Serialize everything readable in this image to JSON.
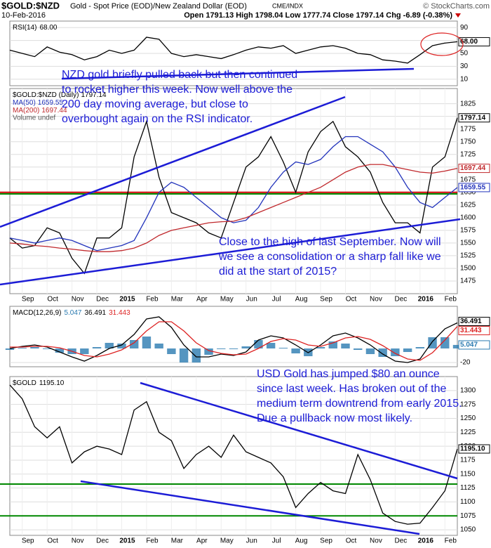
{
  "header": {
    "symbol": "$GOLD:$NZD",
    "description": "Gold - Spot Price (EOD)/New Zealand Dollar (EOD)",
    "exchange": "CME/INDX",
    "copyright": "© StockCharts.com",
    "date": "10-Feb-2016",
    "quote": "Open 1791.13 High 1798.04 Low 1777.74 Close 1797.14 Chg -6.89 (-0.38%)"
  },
  "annotations": [
    "NZD gold briefly pulled back but then continued to rocket higher this week. Now well above the 200 day moving average, but close to overbought again on the RSI indicator.",
    "Close to the high of last September. Now will we see a consolidation or a sharp fall like we did at the start of 2015?",
    "USD Gold has jumped $80 an ounce since last week. Has broken out of the medium term downtrend from early 2015. Due a pullback now most likely."
  ],
  "chart_data": [
    {
      "type": "line",
      "title": "RSI(14)",
      "ylim": [
        0,
        100
      ],
      "yticks": [
        10,
        30,
        50,
        70,
        90
      ],
      "series": [
        {
          "color": "#000000",
          "last_label": "68.00",
          "values": [
            55,
            50,
            45,
            60,
            52,
            48,
            40,
            45,
            55,
            50,
            55,
            75,
            72,
            50,
            45,
            48,
            45,
            42,
            48,
            55,
            60,
            58,
            62,
            50,
            55,
            60,
            62,
            58,
            50,
            48,
            40,
            38,
            35,
            48,
            62,
            66,
            68
          ]
        }
      ]
    },
    {
      "type": "line",
      "legend_extra": "Volume undef",
      "ylim": [
        1450,
        1855
      ],
      "yticks": [
        1475,
        1500,
        1525,
        1550,
        1575,
        1600,
        1625,
        1650,
        1675,
        1700,
        1725,
        1750,
        1775,
        1800,
        1825
      ],
      "categories": [
        null,
        "Sep",
        null,
        "Oct",
        null,
        "Nov",
        null,
        "Dec",
        null,
        "2015",
        null,
        "Feb",
        null,
        "Mar",
        null,
        "Apr",
        null,
        "May",
        null,
        "Jun",
        null,
        "Jul",
        null,
        "Aug",
        null,
        "Sep",
        null,
        "Oct",
        null,
        "Nov",
        null,
        "Dec",
        null,
        "2016",
        null,
        "Feb",
        null
      ],
      "hlines": [
        {
          "value": 1650,
          "color": "#cc0000"
        },
        {
          "value": 1647,
          "color": "#008800"
        }
      ],
      "series": [
        {
          "name": "$GOLD:$NZD (Daily)",
          "color": "#000000",
          "last_label": "1797.14",
          "values": [
            1560,
            1540,
            1545,
            1580,
            1570,
            1520,
            1490,
            1560,
            1560,
            1580,
            1720,
            1790,
            1680,
            1610,
            1600,
            1590,
            1570,
            1560,
            1630,
            1700,
            1720,
            1760,
            1710,
            1650,
            1730,
            1770,
            1790,
            1740,
            1720,
            1690,
            1630,
            1590,
            1590,
            1570,
            1700,
            1720,
            1797.14
          ]
        },
        {
          "name": "MA(50)",
          "color": "#2233bb",
          "last_label": "1659.55",
          "values": [
            1560,
            1555,
            1550,
            1555,
            1560,
            1555,
            1545,
            1535,
            1540,
            1545,
            1555,
            1600,
            1650,
            1670,
            1660,
            1640,
            1620,
            1600,
            1590,
            1595,
            1620,
            1660,
            1690,
            1710,
            1705,
            1715,
            1740,
            1760,
            1760,
            1745,
            1730,
            1700,
            1660,
            1630,
            1620,
            1640,
            1659.55
          ]
        },
        {
          "name": "MA(200)",
          "color": "#c0282c",
          "last_label": "1697.44",
          "values": [
            1550,
            1548,
            1545,
            1543,
            1540,
            1538,
            1535,
            1533,
            1533,
            1535,
            1540,
            1550,
            1565,
            1575,
            1580,
            1585,
            1590,
            1592,
            1593,
            1600,
            1610,
            1620,
            1630,
            1640,
            1650,
            1660,
            1675,
            1690,
            1700,
            1705,
            1705,
            1700,
            1695,
            1690,
            1688,
            1692,
            1697.44
          ]
        }
      ]
    },
    {
      "type": "combo",
      "title": "MACD(12,26,9)",
      "ylim": [
        -26,
        60
      ],
      "yticks": [
        -20
      ],
      "series": [
        {
          "style": "bar",
          "color": "#2a7ab0",
          "last_label": "5.047",
          "values": [
            -2,
            1,
            2,
            -1,
            -6,
            -8,
            -8,
            2,
            8,
            7,
            12,
            17,
            7,
            -8,
            -20,
            -20,
            -9,
            -1,
            -1,
            3,
            12,
            8,
            1,
            -7,
            -11,
            2,
            10,
            7,
            -2,
            -8,
            -12,
            -11,
            -5,
            2,
            16,
            16,
            5.047
          ]
        },
        {
          "style": "line",
          "color": "#000000",
          "last_label": "36.491",
          "values": [
            0,
            3,
            5,
            2,
            -5,
            -12,
            -18,
            -10,
            0,
            5,
            20,
            42,
            45,
            30,
            5,
            -12,
            -12,
            -8,
            -10,
            -5,
            12,
            18,
            15,
            5,
            -6,
            5,
            18,
            22,
            15,
            5,
            -8,
            -18,
            -20,
            -15,
            10,
            28,
            36.491
          ]
        },
        {
          "style": "line",
          "color": "#dd2222",
          "last_label": "31.443",
          "values": [
            2,
            2,
            3,
            3,
            1,
            -4,
            -10,
            -12,
            -8,
            -2,
            8,
            25,
            38,
            38,
            25,
            8,
            -3,
            -7,
            -9,
            -8,
            0,
            10,
            14,
            12,
            5,
            3,
            8,
            15,
            17,
            13,
            4,
            -7,
            -15,
            -17,
            -6,
            12,
            31.443
          ]
        }
      ]
    },
    {
      "type": "line",
      "title": "$GOLD",
      "ylim": [
        1040,
        1325
      ],
      "yticks": [
        1050,
        1075,
        1100,
        1125,
        1150,
        1175,
        1200,
        1225,
        1250,
        1275,
        1300
      ],
      "categories": [
        null,
        "Sep",
        null,
        "Oct",
        null,
        "Nov",
        null,
        "Dec",
        null,
        "2015",
        null,
        "Feb",
        null,
        "Mar",
        null,
        "Apr",
        null,
        "May",
        null,
        "Jun",
        null,
        "Jul",
        null,
        "Aug",
        null,
        "Sep",
        null,
        "Oct",
        null,
        "Nov",
        null,
        "Dec",
        null,
        "2016",
        null,
        "Feb",
        null
      ],
      "hlines": [
        {
          "value": 1132,
          "color": "#008800"
        },
        {
          "value": 1075,
          "color": "#008800"
        }
      ],
      "series": [
        {
          "color": "#000000",
          "last_label": "1195.10",
          "values": [
            1310,
            1285,
            1235,
            1215,
            1235,
            1170,
            1190,
            1200,
            1195,
            1185,
            1265,
            1280,
            1225,
            1210,
            1160,
            1185,
            1200,
            1180,
            1220,
            1190,
            1180,
            1170,
            1145,
            1090,
            1115,
            1135,
            1120,
            1115,
            1185,
            1140,
            1080,
            1065,
            1060,
            1062,
            1090,
            1120,
            1195.1
          ]
        }
      ]
    }
  ]
}
